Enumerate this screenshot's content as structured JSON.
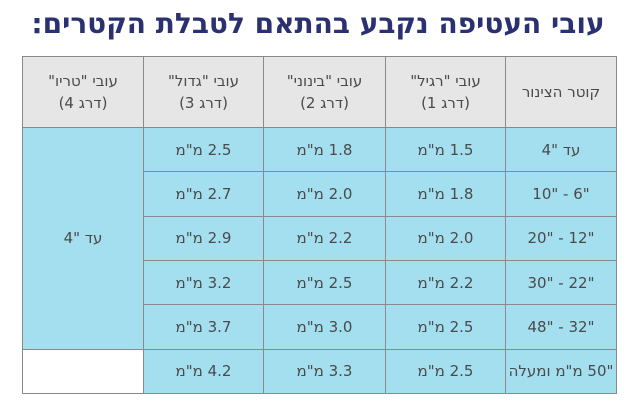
{
  "title": "עובי העטיפה נקבע בהתאם לטבלת הקטרים:",
  "headers": [
    {
      "line1": "קוטר הצינור",
      "line2": ""
    },
    {
      "line1": "עובי \"רגיל\"",
      "line2": "(דרג 1)"
    },
    {
      "line1": "עובי \"בינוני\"",
      "line2": "(דרג 2)"
    },
    {
      "line1": "עובי \"גדול\"",
      "line2": "(דרג 3)"
    },
    {
      "line1": "עובי \"טריו\"",
      "line2": "(דרג 4)"
    }
  ],
  "rows": [
    [
      "עד \"4",
      "1.5 מ\"מ",
      "1.8 מ\"מ",
      "2.5 מ\"מ"
    ],
    [
      "\"6 - \"10",
      "1.8 מ\"מ",
      "2.0 מ\"מ",
      "2.7 מ\"מ"
    ],
    [
      "\"12 - \"20",
      "2.0 מ\"מ",
      "2.2 מ\"מ",
      "2.9 מ\"מ"
    ],
    [
      "\"22 - \"30",
      "2.2 מ\"מ",
      "2.5 מ\"מ",
      "3.2 מ\"מ"
    ],
    [
      "\"32 - \"48",
      "2.5 מ\"מ",
      "3.0 מ\"מ",
      "3.7 מ\"מ"
    ],
    [
      "\"50 מ\"מ ומעלה",
      "2.5 מ\"מ",
      "3.3 מ\"מ",
      "4.2 מ\"מ"
    ]
  ],
  "trio_value": "עד \"4"
}
